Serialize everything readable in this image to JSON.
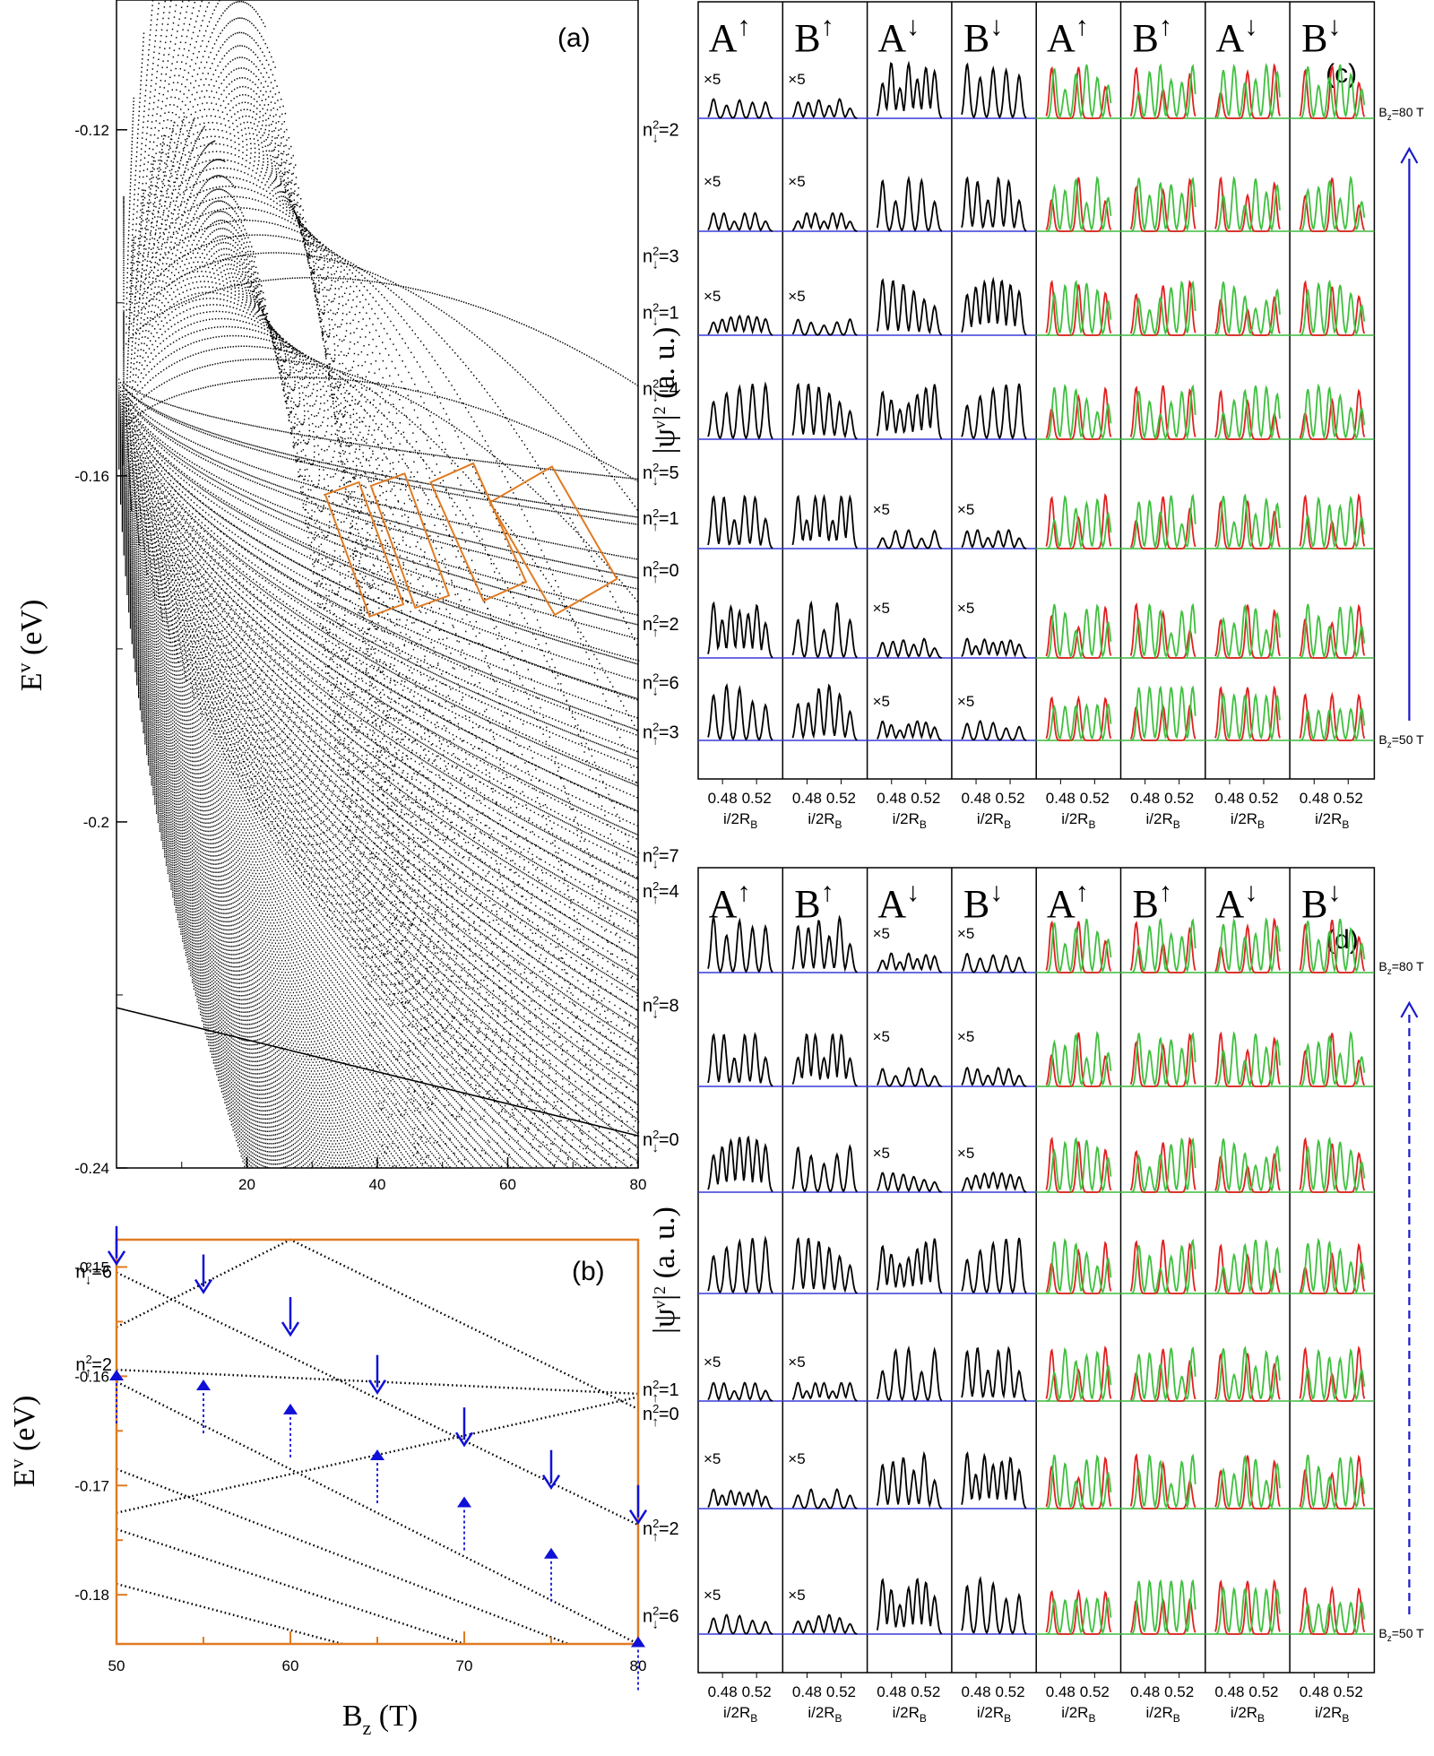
{
  "chart_data": [
    {
      "type": "scatter",
      "panel_label": "(a)",
      "xlabel": "",
      "ylabel": "E",
      "ylabel_sup": "v",
      "ylabel_unit": "(eV)",
      "xlim": [
        0,
        80
      ],
      "ylim": [
        -0.24,
        -0.105
      ],
      "x_ticks": [
        "20",
        "40",
        "60",
        "80"
      ],
      "y_ticks": [
        "-0.12",
        "-0.16",
        "-0.2",
        "-0.24"
      ],
      "marker_color": "#000000",
      "level_labels": [
        {
          "n": "n",
          "sub": "↓",
          "q": "2=2",
          "E": -0.1201
        },
        {
          "n": "n",
          "sub": "↓",
          "q": "2=3",
          "E": -0.1347
        },
        {
          "n": "n",
          "sub": "↓",
          "q": "2=1",
          "E": -0.1412
        },
        {
          "n": "n",
          "sub": "↓",
          "q": "2=4",
          "E": -0.15
        },
        {
          "n": "n",
          "sub": "↓",
          "q": "2=5",
          "E": -0.1597
        },
        {
          "n": "n",
          "sub": "↑",
          "q": "2=1",
          "E": -0.165
        },
        {
          "n": "n",
          "sub": "↑",
          "q": "2=0",
          "E": -0.171
        },
        {
          "n": "n",
          "sub": "↑",
          "q": "2=2",
          "E": -0.1772
        },
        {
          "n": "n",
          "sub": "↓",
          "q": "2=6",
          "E": -0.184
        },
        {
          "n": "n",
          "sub": "↑",
          "q": "2=3",
          "E": -0.1897
        },
        {
          "n": "n",
          "sub": "↓",
          "q": "2=7",
          "E": -0.204
        },
        {
          "n": "n",
          "sub": "↑",
          "q": "2=4",
          "E": -0.2081
        },
        {
          "n": "n",
          "sub": "↓",
          "q": "2=8",
          "E": -0.2213
        },
        {
          "n": "n",
          "sub": "↓",
          "q": "2=0",
          "E": -0.2368
        }
      ],
      "highlight_color": "#e07b22",
      "highlight_boxes": [
        {
          "x": [
            33,
            43
          ],
          "E": [
            -0.161,
            -0.176
          ]
        },
        {
          "x": [
            40,
            50
          ],
          "E": [
            -0.16,
            -0.175
          ]
        },
        {
          "x": [
            49,
            62
          ],
          "E": [
            -0.159,
            -0.174
          ]
        },
        {
          "x": [
            57,
            77
          ],
          "E": [
            -0.16,
            -0.175
          ]
        }
      ]
    },
    {
      "type": "scatter",
      "panel_label": "(b)",
      "xlabel": "B",
      "xlabel_sub": "z",
      "xlabel_unit": "(T)",
      "ylabel": "E",
      "ylabel_sup": "v",
      "ylabel_unit": "(eV)",
      "xlim": [
        50,
        80
      ],
      "ylim": [
        -0.1845,
        -0.1475
      ],
      "x_ticks": [
        "50",
        "60",
        "70",
        "80"
      ],
      "y_ticks": [
        "-0.15",
        "-0.16",
        "-0.17",
        "-0.18"
      ],
      "frame_color": "#e07b22",
      "lines": [
        {
          "x": [
            50,
            80
          ],
          "y": [
            -0.1505,
            -0.1736
          ]
        },
        {
          "x": [
            50,
            80
          ],
          "y": [
            -0.1594,
            -0.1616
          ]
        },
        {
          "x": [
            50,
            80
          ],
          "y": [
            -0.1725,
            -0.1619
          ]
        },
        {
          "x": [
            50,
            60,
            80
          ],
          "y": [
            -0.1555,
            -0.1475,
            -0.163
          ]
        },
        {
          "x": [
            50,
            80
          ],
          "y": [
            -0.1605,
            -0.1845
          ]
        },
        {
          "x": [
            50,
            76
          ],
          "y": [
            -0.1685,
            -0.1845
          ]
        },
        {
          "x": [
            50,
            70
          ],
          "y": [
            -0.174,
            -0.1845
          ]
        },
        {
          "x": [
            50,
            63
          ],
          "y": [
            -0.179,
            -0.1845
          ]
        }
      ],
      "arrows_down": [
        {
          "B": 50,
          "E": -0.1497
        },
        {
          "B": 55,
          "E": -0.1523
        },
        {
          "B": 60,
          "E": -0.1562
        },
        {
          "B": 65,
          "E": -0.1615
        },
        {
          "B": 70,
          "E": -0.1663
        },
        {
          "B": 75,
          "E": -0.1702
        },
        {
          "B": 80,
          "E": -0.1734
        }
      ],
      "arrows_up": [
        {
          "B": 50,
          "E": -0.1594
        },
        {
          "B": 55,
          "E": -0.1603
        },
        {
          "B": 60,
          "E": -0.1625
        },
        {
          "B": 65,
          "E": -0.1667
        },
        {
          "B": 70,
          "E": -0.171
        },
        {
          "B": 75,
          "E": -0.1757
        },
        {
          "B": 80,
          "E": -0.1838
        }
      ],
      "arrow_color": "#1010d8",
      "level_labels": [
        {
          "n": "n",
          "sub": "↓",
          "q": "2=6",
          "side": "left",
          "E": -0.1505
        },
        {
          "n": "n",
          "sub": "↑",
          "q": "2=2",
          "side": "left",
          "E": -0.159
        },
        {
          "n": "n",
          "sub": "↑",
          "q": "2=1",
          "side": "right",
          "E": -0.1613
        },
        {
          "n": "n",
          "sub": "↑",
          "q": "2=0",
          "side": "right",
          "E": -0.1635
        },
        {
          "n": "n",
          "sub": "↑",
          "q": "2=2",
          "side": "right",
          "E": -0.174
        },
        {
          "n": "n",
          "sub": "↓",
          "q": "2=6",
          "side": "right",
          "E": -0.182
        }
      ]
    },
    {
      "type": "line",
      "panel_label": "(c)",
      "ylabel": "|ψ",
      "ylabel_sup": "v",
      "ylabel_tail": "|",
      "ylabel_sup2": "2",
      "ylabel_unit": "(a. u.)",
      "columns": [
        {
          "h": "A",
          "s": "↑"
        },
        {
          "h": "B",
          "s": "↑"
        },
        {
          "h": "A",
          "s": "↓"
        },
        {
          "h": "B",
          "s": "↓"
        },
        {
          "h": "A",
          "s": "↑"
        },
        {
          "h": "B",
          "s": "↑"
        },
        {
          "h": "A",
          "s": "↓"
        },
        {
          "h": "B",
          "s": "↓"
        }
      ],
      "x_ticks": [
        "0.48",
        "0.52"
      ],
      "xlabel": "i/2R",
      "xlabel_sub": "B",
      "field_top": {
        "t": "B",
        "sub": "z",
        "v": "=80 T"
      },
      "field_bottom": {
        "t": "B",
        "sub": "z",
        "v": "=50 T"
      },
      "arrow_style": "solid",
      "mag_label": "×5",
      "mag_cells": [
        [
          0,
          0
        ],
        [
          0,
          1
        ],
        [
          1,
          0
        ],
        [
          1,
          1
        ],
        [
          2,
          0
        ],
        [
          2,
          1
        ],
        [
          4,
          2
        ],
        [
          4,
          3
        ],
        [
          5,
          2
        ],
        [
          5,
          3
        ],
        [
          6,
          2
        ],
        [
          6,
          3
        ]
      ],
      "colors": {
        "psi": "#000000",
        "up": "#e02020",
        "down": "#40c040",
        "base_left": "#3a3ad8",
        "base_right": "#3fb83f"
      }
    },
    {
      "type": "line",
      "panel_label": "(d)",
      "ylabel": "|ψ",
      "ylabel_sup": "v",
      "ylabel_tail": "|",
      "ylabel_sup2": "2",
      "ylabel_unit": "(a. u.)",
      "columns": [
        {
          "h": "A",
          "s": "↑"
        },
        {
          "h": "B",
          "s": "↑"
        },
        {
          "h": "A",
          "s": "↓"
        },
        {
          "h": "B",
          "s": "↓"
        },
        {
          "h": "A",
          "s": "↑"
        },
        {
          "h": "B",
          "s": "↑"
        },
        {
          "h": "A",
          "s": "↓"
        },
        {
          "h": "B",
          "s": "↓"
        }
      ],
      "x_ticks": [
        "0.48",
        "0.52"
      ],
      "xlabel": "i/2R",
      "xlabel_sub": "B",
      "field_top": {
        "t": "B",
        "sub": "z",
        "v": "=80 T"
      },
      "field_bottom": {
        "t": "B",
        "sub": "z",
        "v": "=50 T"
      },
      "arrow_style": "dashed",
      "mag_label": "×5",
      "mag_cells": [
        [
          0,
          2
        ],
        [
          0,
          3
        ],
        [
          1,
          2
        ],
        [
          1,
          3
        ],
        [
          2,
          2
        ],
        [
          2,
          3
        ],
        [
          4,
          0
        ],
        [
          4,
          1
        ],
        [
          5,
          0
        ],
        [
          5,
          1
        ],
        [
          6,
          0
        ],
        [
          6,
          1
        ]
      ],
      "colors": {
        "psi": "#000000",
        "up": "#e02020",
        "down": "#40c040",
        "base_left": "#3a3ad8",
        "base_right": "#3fb83f"
      }
    }
  ]
}
